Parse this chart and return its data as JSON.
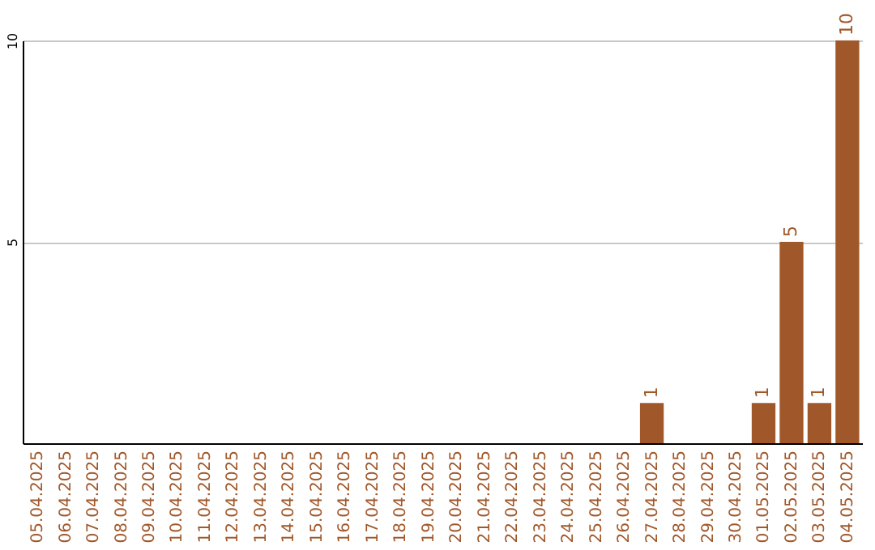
{
  "chart_data": {
    "type": "bar",
    "categories": [
      "05.04.2025",
      "06.04.2025",
      "07.04.2025",
      "08.04.2025",
      "09.04.2025",
      "10.04.2025",
      "11.04.2025",
      "12.04.2025",
      "13.04.2025",
      "14.04.2025",
      "15.04.2025",
      "16.04.2025",
      "17.04.2025",
      "18.04.2025",
      "19.04.2025",
      "20.04.2025",
      "21.04.2025",
      "22.04.2025",
      "23.04.2025",
      "24.04.2025",
      "25.04.2025",
      "26.04.2025",
      "27.04.2025",
      "28.04.2025",
      "29.04.2025",
      "30.04.2025",
      "01.05.2025",
      "02.05.2025",
      "03.05.2025",
      "04.05.2025"
    ],
    "values": [
      0,
      0,
      0,
      0,
      0,
      0,
      0,
      0,
      0,
      0,
      0,
      0,
      0,
      0,
      0,
      0,
      0,
      0,
      0,
      0,
      0,
      0,
      1,
      0,
      0,
      0,
      1,
      5,
      1,
      10
    ],
    "value_labels": [
      null,
      null,
      null,
      null,
      null,
      null,
      null,
      null,
      null,
      null,
      null,
      null,
      null,
      null,
      null,
      null,
      null,
      null,
      null,
      null,
      null,
      null,
      "1",
      null,
      null,
      null,
      "1",
      "5",
      "1",
      "10"
    ],
    "color": "#a0582a",
    "ylim": [
      0,
      10
    ],
    "yticks": [
      5,
      10
    ],
    "grid": "y"
  }
}
